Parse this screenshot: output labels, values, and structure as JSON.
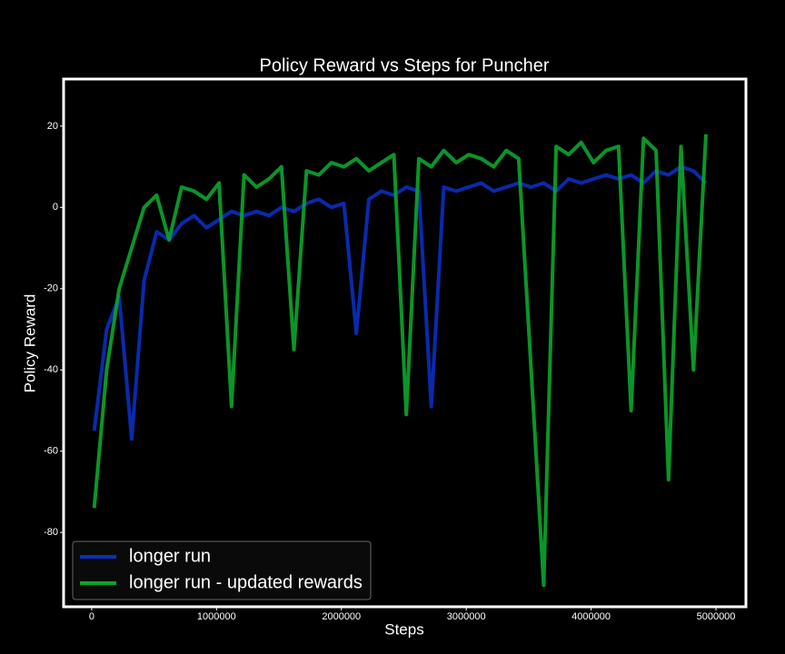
{
  "chart_data": {
    "type": "line",
    "title": "Policy Reward vs Steps for Puncher",
    "x_label": "Steps",
    "y_label": "Policy Reward",
    "x": [
      20000,
      120000,
      220000,
      320000,
      420000,
      520000,
      620000,
      720000,
      820000,
      920000,
      1020000,
      1120000,
      1220000,
      1320000,
      1420000,
      1520000,
      1620000,
      1720000,
      1820000,
      1920000,
      2020000,
      2120000,
      2220000,
      2320000,
      2420000,
      2520000,
      2620000,
      2720000,
      2820000,
      2920000,
      3020000,
      3120000,
      3220000,
      3320000,
      3420000,
      3520000,
      3620000,
      3720000,
      3820000,
      3920000,
      4020000,
      4120000,
      4220000,
      4320000,
      4420000,
      4520000,
      4620000,
      4720000,
      4820000,
      4920000
    ],
    "series": [
      {
        "name": "longer run",
        "color": "#0a2fbf",
        "values": [
          -55,
          -30,
          -22,
          -57,
          -18,
          -6,
          -8,
          -4,
          -2,
          -5,
          -3,
          -1,
          -2,
          -1,
          -2,
          0,
          -1,
          1,
          2,
          0,
          1,
          -31,
          2,
          4,
          3,
          5,
          4,
          -49,
          5,
          4,
          5,
          6,
          4,
          5,
          6,
          5,
          6,
          4,
          7,
          6,
          7,
          8,
          7,
          8,
          6,
          9,
          8,
          10,
          9,
          6
        ]
      },
      {
        "name": "longer run - updated rewards",
        "color": "#0ca52c",
        "values": [
          -74,
          -40,
          -20,
          -10,
          0,
          3,
          -8,
          5,
          4,
          2,
          6,
          -49,
          8,
          5,
          7,
          10,
          -35,
          9,
          8,
          11,
          10,
          12,
          9,
          11,
          13,
          -51,
          12,
          10,
          14,
          11,
          13,
          12,
          10,
          14,
          12,
          -40,
          -93,
          15,
          13,
          16,
          11,
          14,
          15,
          -50,
          17,
          14,
          -67,
          15,
          -40,
          18
        ]
      }
    ],
    "xlim": [
      -225000,
      5240000
    ],
    "ylim": [
      -98.3,
      31.6
    ],
    "xticks": [
      0,
      1000000,
      2000000,
      3000000,
      4000000,
      5000000
    ],
    "yticks": [
      -80,
      -60,
      -40,
      -20,
      0,
      20
    ],
    "grid": false,
    "legend": "lower left"
  }
}
